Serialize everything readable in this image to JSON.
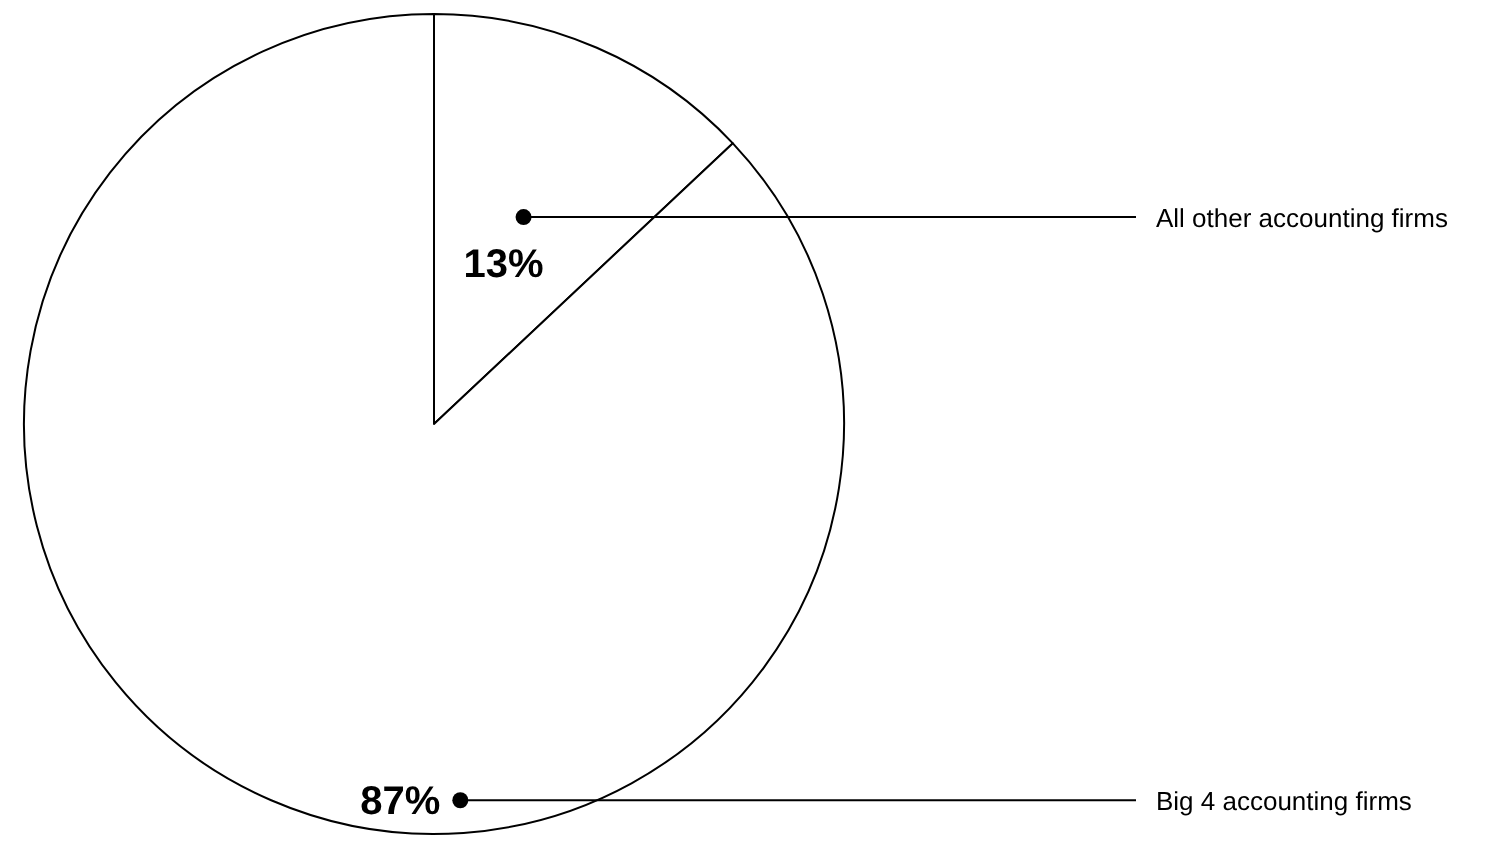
{
  "chart_data": {
    "type": "pie",
    "categories": [
      "All other accounting firms",
      "Big 4 accounting firms"
    ],
    "values": [
      13,
      87
    ],
    "colors": [
      "#ffffff",
      "#ffffff"
    ],
    "value_labels": [
      "13%",
      "87%"
    ]
  }
}
